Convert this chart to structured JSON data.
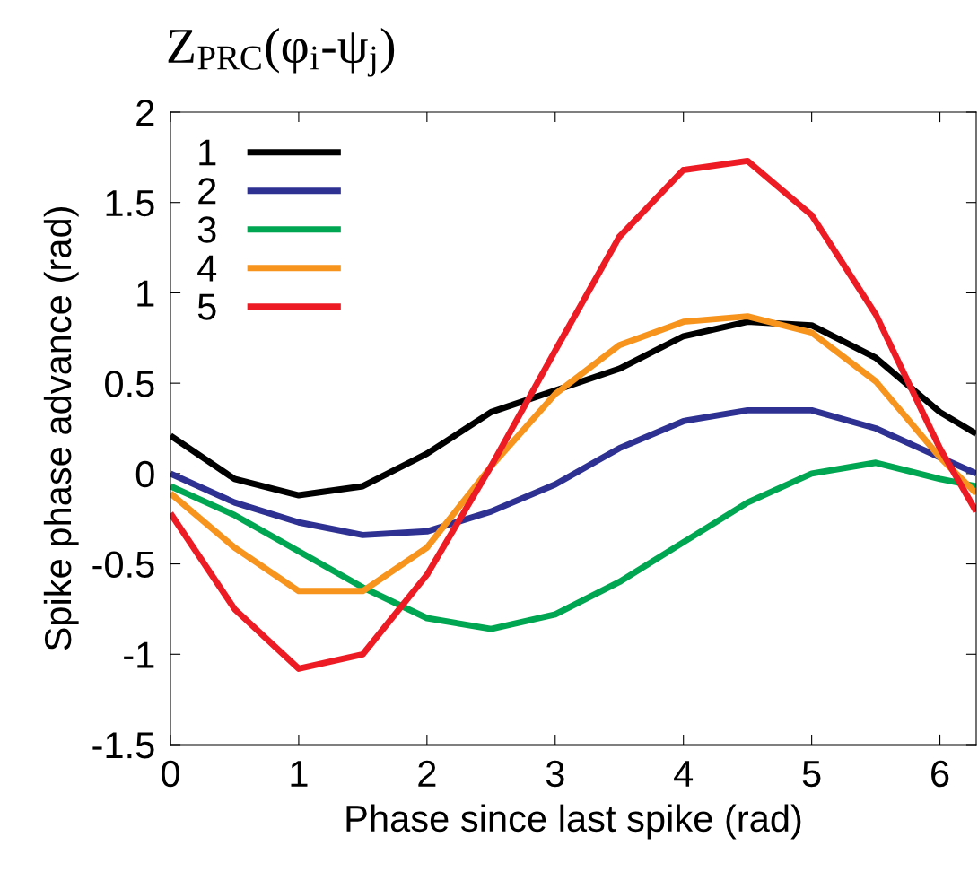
{
  "chart_data": {
    "type": "line",
    "title": "Z$_{PRC}$(φ$_{i}$-ψ$_{j}$)",
    "xlabel": "Phase since last spike (rad)",
    "ylabel": "Spike phase advance (rad)",
    "xlim": [
      0,
      6.283
    ],
    "xticks": [
      0,
      1,
      2,
      3,
      4,
      5,
      6
    ],
    "ylim": [
      -1.5,
      2
    ],
    "yticks": [
      -1.5,
      {
        "value": -1,
        "label": "-1"
      },
      {
        "value": -0.5,
        "label": "-0.5"
      },
      0,
      0.5,
      1,
      1.5,
      2
    ],
    "x": [
      0,
      0.5,
      1,
      1.5,
      2,
      2.5,
      3,
      3.5,
      4,
      4.5,
      5,
      5.5,
      6,
      6.283
    ],
    "grid": false,
    "legend": "top left",
    "line_style": "solid",
    "marker": "none",
    "series": [
      {
        "name": "1",
        "color": "#000000",
        "values": [
          0.21,
          -0.03,
          -0.12,
          -0.07,
          0.11,
          0.34,
          0.46,
          0.58,
          0.76,
          0.84,
          0.82,
          0.64,
          0.34,
          0.22
        ]
      },
      {
        "name": "2",
        "color": "#2e3192",
        "values": [
          0,
          -0.16,
          -0.27,
          -0.34,
          -0.32,
          -0.21,
          -0.06,
          0.14,
          0.29,
          0.35,
          0.35,
          0.25,
          0.09,
          0
        ]
      },
      {
        "name": "3",
        "color": "#00a651",
        "values": [
          -0.07,
          -0.23,
          -0.43,
          -0.63,
          -0.8,
          -0.86,
          -0.78,
          -0.6,
          -0.38,
          -0.16,
          0,
          0.06,
          -0.03,
          -0.07
        ]
      },
      {
        "name": "4",
        "color": "#f7941d",
        "values": [
          -0.11,
          -0.41,
          -0.65,
          -0.65,
          -0.41,
          0.04,
          0.44,
          0.71,
          0.84,
          0.87,
          0.78,
          0.51,
          0.09,
          -0.11
        ]
      },
      {
        "name": "5",
        "color": "#ed1c24",
        "values": [
          -0.22,
          -0.75,
          -1.08,
          -1.0,
          -0.56,
          0.04,
          0.68,
          1.31,
          1.68,
          1.73,
          1.43,
          0.88,
          0.14,
          -0.21
        ]
      }
    ]
  }
}
